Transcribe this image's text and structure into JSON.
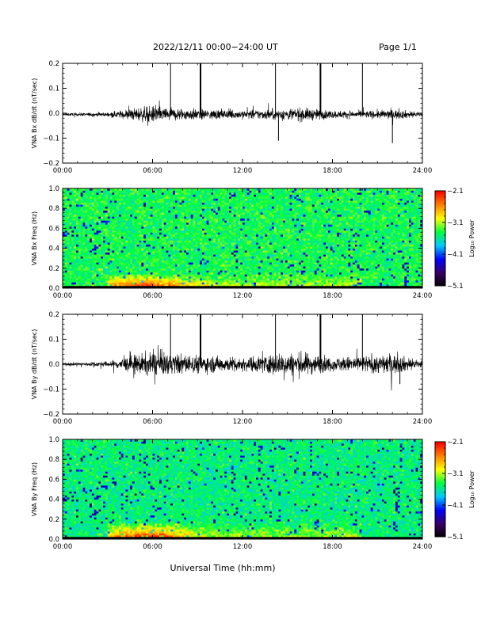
{
  "header": {
    "title": "2022/12/11  00:00−24:00 UT",
    "page": "Page 1/1"
  },
  "colors": {
    "trace": "#000000",
    "colormap": [
      "#000000",
      "#3a0066",
      "#0000ff",
      "#00c8ff",
      "#00ff40",
      "#ffff00",
      "#ff8000",
      "#ff0000"
    ]
  },
  "chart_data": [
    {
      "type": "line",
      "ylabel": "VNA Bx dB/dt (nT/sec)",
      "xlim": [
        0,
        24
      ],
      "ylim": [
        -0.2,
        0.2
      ],
      "yticks": [
        "0.2",
        "0.1",
        "0.0",
        "−0.1",
        "−0.2"
      ],
      "xticks": [
        "00:00",
        "06:00",
        "12:00",
        "18:00",
        "24:00"
      ],
      "baseline": -0.005,
      "noise_envelope": [
        [
          0,
          0.004
        ],
        [
          3,
          0.006
        ],
        [
          5,
          0.02
        ],
        [
          6,
          0.025
        ],
        [
          8,
          0.018
        ],
        [
          10,
          0.015
        ],
        [
          12,
          0.013
        ],
        [
          14,
          0.016
        ],
        [
          16,
          0.02
        ],
        [
          18,
          0.012
        ],
        [
          20,
          0.01
        ],
        [
          22,
          0.015
        ],
        [
          24,
          0.008
        ]
      ],
      "spikes": [
        {
          "x": 7.2,
          "y": 0.21
        },
        {
          "x": 9.2,
          "y": 0.21
        },
        {
          "x": 14.2,
          "y": 0.21
        },
        {
          "x": 17.2,
          "y": 0.21
        },
        {
          "x": 20.0,
          "y": 0.21
        },
        {
          "x": 14.4,
          "y": -0.11
        },
        {
          "x": 22.0,
          "y": -0.12
        }
      ]
    },
    {
      "type": "heatmap",
      "ylabel": "VNA Bx Freq (Hz)",
      "xlim": [
        0,
        24
      ],
      "ylim": [
        0,
        1
      ],
      "yticks": [
        "1.0",
        "0.8",
        "0.6",
        "0.4",
        "0.2",
        "0.0"
      ],
      "xticks": [
        "00:00",
        "06:00",
        "12:00",
        "18:00",
        "24:00"
      ],
      "colorbar": {
        "label": "Log₁₀ Power",
        "range": [
          -5.1,
          -2.1
        ],
        "ticks": [
          "−2.1",
          "−3.1",
          "−4.1",
          "−5.1"
        ]
      },
      "background_level": -3.4,
      "low_freq_enhancement": {
        "x_range": [
          4,
          18
        ],
        "peak_x": 5.5,
        "freq_max": 0.15,
        "peak_level": -2.3
      }
    },
    {
      "type": "line",
      "ylabel": "VNA By dB/dt (nT/sec)",
      "xlim": [
        0,
        24
      ],
      "ylim": [
        -0.2,
        0.2
      ],
      "yticks": [
        "0.2",
        "0.1",
        "0.0",
        "−0.1",
        "−0.2"
      ],
      "xticks": [
        "00:00",
        "06:00",
        "12:00",
        "18:00",
        "24:00"
      ],
      "baseline": 0.0,
      "noise_envelope": [
        [
          0,
          0.004
        ],
        [
          3,
          0.008
        ],
        [
          5,
          0.03
        ],
        [
          6,
          0.035
        ],
        [
          8,
          0.03
        ],
        [
          10,
          0.025
        ],
        [
          12,
          0.02
        ],
        [
          14,
          0.03
        ],
        [
          16,
          0.035
        ],
        [
          18,
          0.02
        ],
        [
          20,
          0.025
        ],
        [
          22,
          0.03
        ],
        [
          24,
          0.012
        ]
      ],
      "spikes": [
        {
          "x": 7.2,
          "y": 0.21
        },
        {
          "x": 9.2,
          "y": 0.21
        },
        {
          "x": 14.2,
          "y": 0.21
        },
        {
          "x": 17.2,
          "y": 0.21
        },
        {
          "x": 20.0,
          "y": 0.21
        },
        {
          "x": 22.5,
          "y": -0.08
        }
      ]
    },
    {
      "type": "heatmap",
      "ylabel": "VNA By Freq (Hz)",
      "xlim": [
        0,
        24
      ],
      "ylim": [
        0,
        1
      ],
      "yticks": [
        "1.0",
        "0.8",
        "0.6",
        "0.4",
        "0.2",
        "0.0"
      ],
      "xticks": [
        "00:00",
        "06:00",
        "12:00",
        "18:00",
        "24:00"
      ],
      "colorbar": {
        "label": "Log₁₀ Power",
        "range": [
          -5.1,
          -2.1
        ],
        "ticks": [
          "−2.1",
          "−3.1",
          "−4.1",
          "−5.1"
        ]
      },
      "background_level": -3.5,
      "low_freq_enhancement": {
        "x_range": [
          4,
          18
        ],
        "peak_x": 5.5,
        "freq_max": 0.18,
        "peak_level": -2.3
      }
    }
  ],
  "xlabel": "Universal Time (hh:mm)"
}
